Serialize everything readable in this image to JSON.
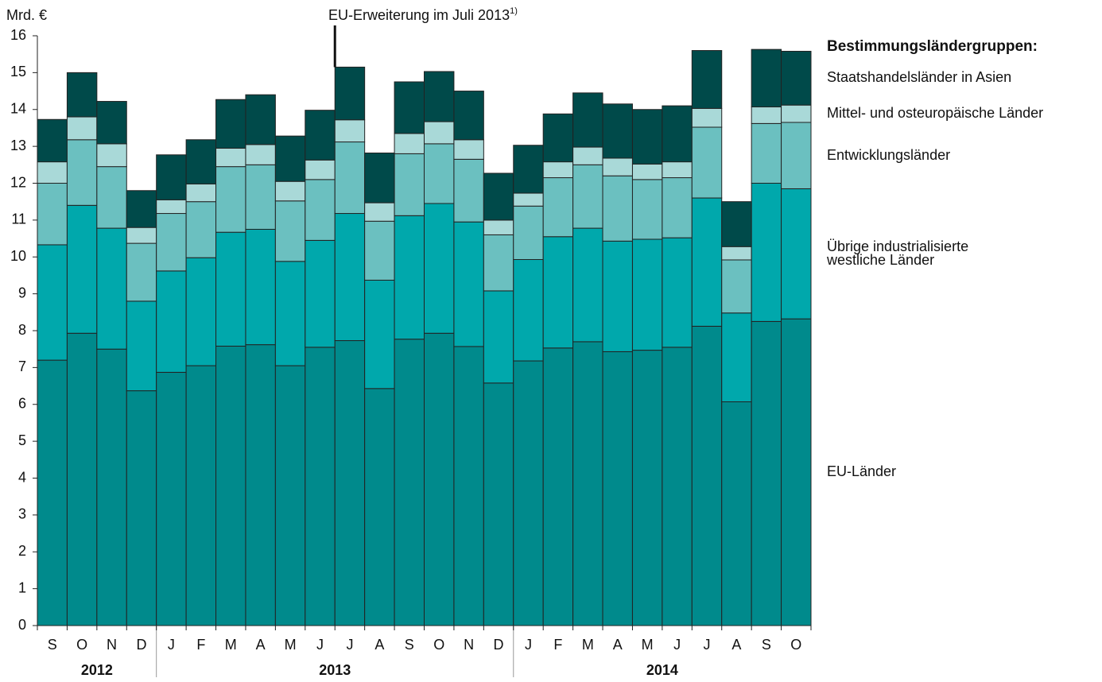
{
  "chart_data": {
    "type": "stacked_bar",
    "ylabel": "Mrd. €",
    "annotation": "EU-Erweiterung im Juli 2013",
    "annotation_note": "1)",
    "legend_title": "Bestimmungsländergruppen:",
    "groups": [
      {
        "label": "2012",
        "categories": [
          "S",
          "O",
          "N",
          "D"
        ]
      },
      {
        "label": "2013",
        "categories": [
          "J",
          "F",
          "M",
          "A",
          "M",
          "J",
          "J",
          "A",
          "S",
          "O",
          "N",
          "D"
        ]
      },
      {
        "label": "2014",
        "categories": [
          "J",
          "F",
          "M",
          "A",
          "M",
          "J",
          "J",
          "A",
          "S",
          "O"
        ]
      }
    ],
    "series": [
      {
        "name": "EU-Länder",
        "color": "#008a8c",
        "values": [
          7.2,
          7.93,
          7.5,
          6.37,
          6.87,
          7.05,
          7.58,
          7.62,
          7.05,
          7.55,
          7.73,
          6.43,
          7.77,
          7.93,
          7.57,
          6.58,
          7.18,
          7.53,
          7.7,
          7.43,
          7.47,
          7.55,
          8.12,
          6.07,
          8.25,
          8.32
        ]
      },
      {
        "name": "Übrige industrialisierte westliche Länder",
        "color": "#00a8ac",
        "values": [
          3.13,
          3.47,
          3.28,
          2.43,
          2.75,
          2.93,
          3.09,
          3.13,
          2.83,
          2.9,
          3.45,
          2.94,
          3.35,
          3.52,
          3.38,
          2.5,
          2.75,
          3.02,
          3.08,
          3.0,
          3.01,
          2.97,
          3.48,
          2.41,
          3.75,
          3.53
        ]
      },
      {
        "name": "Entwicklungsländer",
        "color": "#6bc0c0",
        "values": [
          1.67,
          1.78,
          1.67,
          1.57,
          1.56,
          1.52,
          1.78,
          1.75,
          1.64,
          1.65,
          1.94,
          1.6,
          1.68,
          1.62,
          1.7,
          1.52,
          1.45,
          1.6,
          1.72,
          1.77,
          1.62,
          1.63,
          1.92,
          1.44,
          1.62,
          1.8
        ]
      },
      {
        "name": "Mittel- und osteuropäische Länder",
        "color": "#a9d9d8",
        "values": [
          0.58,
          0.62,
          0.62,
          0.43,
          0.37,
          0.48,
          0.5,
          0.55,
          0.53,
          0.53,
          0.6,
          0.5,
          0.55,
          0.6,
          0.53,
          0.4,
          0.35,
          0.43,
          0.48,
          0.48,
          0.42,
          0.43,
          0.51,
          0.36,
          0.45,
          0.47
        ]
      },
      {
        "name": "Staatshandelsländer in Asien",
        "color": "#004a4a",
        "values": [
          1.15,
          1.2,
          1.15,
          1.0,
          1.22,
          1.2,
          1.32,
          1.35,
          1.23,
          1.35,
          1.43,
          1.35,
          1.4,
          1.36,
          1.32,
          1.27,
          1.3,
          1.3,
          1.47,
          1.47,
          1.48,
          1.52,
          1.57,
          1.22,
          1.56,
          1.46
        ]
      }
    ],
    "ylim": [
      0,
      16
    ],
    "yticks": [
      0,
      1,
      2,
      3,
      4,
      5,
      6,
      7,
      8,
      9,
      10,
      11,
      12,
      13,
      14,
      15,
      16
    ]
  }
}
